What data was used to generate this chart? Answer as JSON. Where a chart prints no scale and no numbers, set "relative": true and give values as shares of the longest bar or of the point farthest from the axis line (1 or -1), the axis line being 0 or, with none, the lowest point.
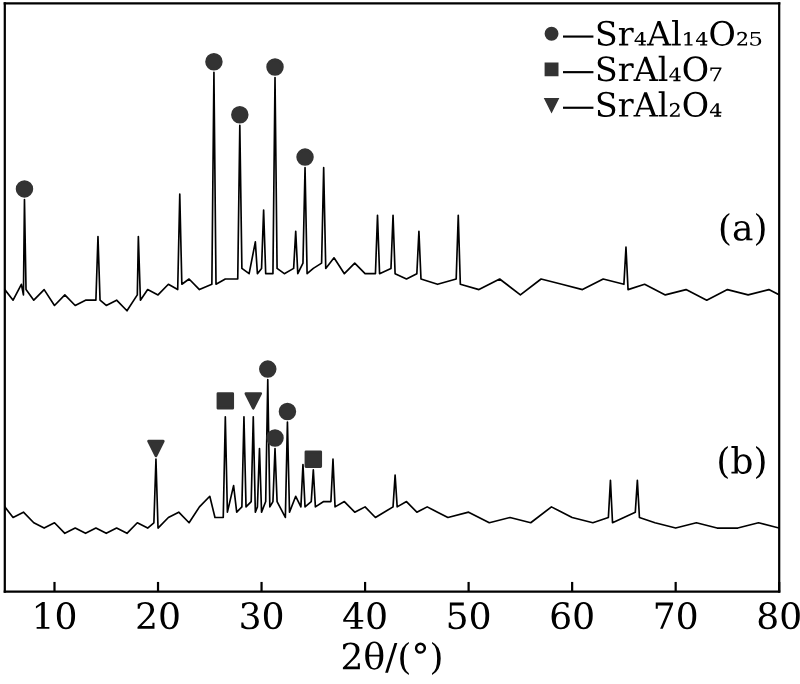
{
  "chart_data": {
    "type": "line",
    "relative": true,
    "xlabel": "2θ/(°)",
    "xlim": [
      5.2,
      80
    ],
    "xticks": [
      10,
      20,
      30,
      40,
      50,
      60,
      70,
      80
    ],
    "grid": false,
    "legend": "top right",
    "tick_labels": "x",
    "series": [
      {
        "color": "#000000",
        "x": [
          5.2,
          6.0,
          6.8,
          7.0,
          7.1,
          7.25,
          8,
          9,
          10,
          11,
          12,
          13,
          14.0,
          14.2,
          14.4,
          15,
          16,
          17,
          18.0,
          18.1,
          18.3,
          19,
          20,
          21,
          21.9,
          22.1,
          22.3,
          23,
          24,
          25.2,
          25.4,
          25.6,
          26.5,
          27.7,
          27.9,
          28.1,
          28.8,
          29.4,
          29.6,
          30.0,
          30.2,
          30.4,
          31.1,
          31.3,
          31.5,
          32.2,
          33.1,
          33.3,
          33.5,
          34.0,
          34.2,
          34.4,
          35.0,
          35.8,
          36.0,
          36.2,
          37,
          38,
          39,
          40,
          41.0,
          41.2,
          41.4,
          42.5,
          42.7,
          42.9,
          44,
          45.0,
          45.2,
          45.4,
          47,
          48.8,
          49.0,
          49.2,
          51,
          53,
          55,
          57,
          59,
          61,
          63,
          65.0,
          65.2,
          65.4,
          67,
          69,
          71,
          73,
          75,
          77,
          79,
          80
        ],
        "values": [
          0.57,
          0.55,
          0.58,
          0.56,
          0.74,
          0.57,
          0.55,
          0.57,
          0.54,
          0.56,
          0.54,
          0.55,
          0.55,
          0.67,
          0.55,
          0.54,
          0.55,
          0.53,
          0.56,
          0.67,
          0.55,
          0.57,
          0.56,
          0.58,
          0.57,
          0.75,
          0.58,
          0.59,
          0.57,
          0.58,
          0.98,
          0.58,
          0.59,
          0.59,
          0.88,
          0.61,
          0.6,
          0.66,
          0.6,
          0.61,
          0.72,
          0.6,
          0.6,
          0.97,
          0.61,
          0.6,
          0.61,
          0.68,
          0.6,
          0.62,
          0.8,
          0.6,
          0.61,
          0.62,
          0.8,
          0.61,
          0.63,
          0.6,
          0.62,
          0.6,
          0.6,
          0.71,
          0.6,
          0.61,
          0.71,
          0.6,
          0.59,
          0.6,
          0.68,
          0.59,
          0.58,
          0.59,
          0.71,
          0.58,
          0.57,
          0.59,
          0.56,
          0.59,
          0.58,
          0.57,
          0.59,
          0.58,
          0.65,
          0.57,
          0.58,
          0.56,
          0.57,
          0.55,
          0.57,
          0.56,
          0.57,
          0.56
        ]
      },
      {
        "color": "#000000",
        "x": [
          5.2,
          6,
          7,
          8,
          9,
          10,
          11,
          12,
          13,
          14,
          15,
          16,
          17,
          18,
          19,
          19.6,
          19.8,
          20.0,
          21,
          22,
          23,
          24,
          25,
          25.5,
          26.3,
          26.5,
          26.7,
          27.3,
          27.6,
          28.1,
          28.3,
          28.5,
          29.0,
          29.2,
          29.4,
          29.6,
          29.8,
          30.0,
          30.4,
          30.6,
          30.8,
          31.1,
          31.3,
          31.5,
          32.3,
          32.5,
          32.7,
          33.3,
          33.8,
          34.0,
          34.2,
          34.8,
          35.0,
          35.2,
          36,
          36.7,
          36.9,
          37.1,
          38,
          39,
          40,
          41,
          42.7,
          42.9,
          43.1,
          44,
          45,
          46,
          47,
          48,
          50,
          52,
          54,
          56,
          58,
          60,
          62,
          63.5,
          63.7,
          63.9,
          65,
          66.1,
          66.3,
          66.5,
          68,
          70,
          72,
          74,
          76,
          78,
          80
        ],
        "values": [
          0.16,
          0.14,
          0.15,
          0.13,
          0.12,
          0.13,
          0.11,
          0.12,
          0.11,
          0.12,
          0.11,
          0.12,
          0.11,
          0.13,
          0.12,
          0.13,
          0.25,
          0.12,
          0.14,
          0.15,
          0.13,
          0.16,
          0.18,
          0.14,
          0.14,
          0.33,
          0.15,
          0.2,
          0.15,
          0.16,
          0.33,
          0.16,
          0.17,
          0.33,
          0.15,
          0.16,
          0.27,
          0.15,
          0.17,
          0.4,
          0.16,
          0.17,
          0.27,
          0.17,
          0.14,
          0.32,
          0.15,
          0.18,
          0.16,
          0.24,
          0.16,
          0.17,
          0.23,
          0.16,
          0.17,
          0.17,
          0.25,
          0.16,
          0.17,
          0.15,
          0.16,
          0.14,
          0.16,
          0.22,
          0.16,
          0.17,
          0.15,
          0.16,
          0.15,
          0.14,
          0.15,
          0.13,
          0.14,
          0.13,
          0.16,
          0.14,
          0.13,
          0.14,
          0.21,
          0.13,
          0.14,
          0.15,
          0.21,
          0.14,
          0.13,
          0.12,
          0.13,
          0.12,
          0.12,
          0.13,
          0.12
        ]
      },
      {
        "type": "scatter",
        "name": "—Sr₄Al₁₄O₂₅",
        "marker": "circle",
        "color": "#333333",
        "x": [
          7.1,
          25.4,
          27.9,
          31.3,
          34.2,
          30.6,
          31.3,
          32.5
        ],
        "values": [
          0.76,
          1.0,
          0.9,
          0.99,
          0.82,
          0.42,
          0.29,
          0.34
        ]
      },
      {
        "type": "scatter",
        "name": "—SrAl₄O₇",
        "marker": "square",
        "color": "#333333",
        "x": [
          26.5,
          35.0
        ],
        "values": [
          0.36,
          0.25
        ]
      },
      {
        "type": "scatter",
        "name": "—SrAl₂O₄",
        "marker": "triangle",
        "color": "#333333",
        "x": [
          19.8,
          29.2
        ],
        "values": [
          0.27,
          0.36
        ]
      }
    ],
    "annotations": [
      "(a)",
      "(b)"
    ]
  }
}
